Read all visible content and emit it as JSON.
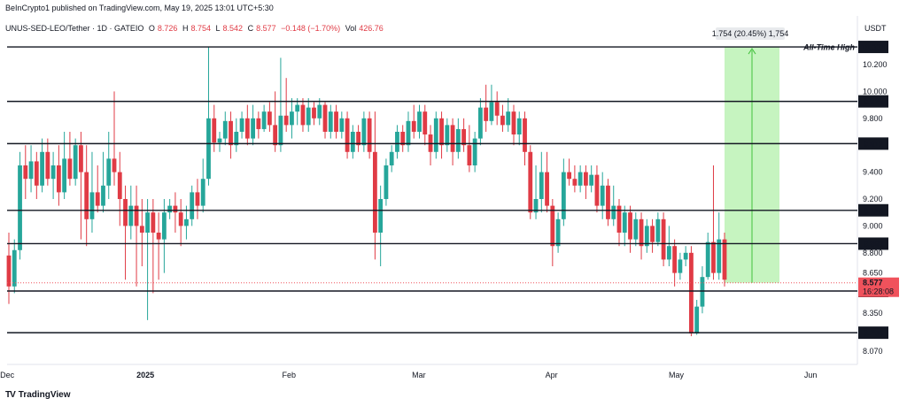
{
  "header": {
    "publisher": "BeInCrypto1 published on TradingView.com, May 19, 2025 13:01 UTC+5:30",
    "symbol": "UNUS-SED-LEO/Tether · 1D · GATEIO",
    "open_label": "O",
    "open": "8.726",
    "high_label": "H",
    "high": "8.754",
    "low_label": "L",
    "low": "8.542",
    "close_label": "C",
    "close": "8.577",
    "change": "−0.148 (−1.70%)",
    "volume_label": "Vol",
    "volume": "426.76",
    "currency": "USDT"
  },
  "footer": {
    "brand": "TradingView",
    "logo_text": "TV"
  },
  "colors": {
    "up": "#26a69a",
    "down": "#e03b45",
    "price_tag": "#f0525c",
    "range_fill": "#b8f1b0",
    "range_line": "#43c23d"
  },
  "chart_data": {
    "type": "candlestick",
    "x_axis_ticks": [
      "Dec",
      "2025",
      "Feb",
      "Mar",
      "Apr",
      "May",
      "Jun"
    ],
    "y_axis_ticks": [
      8.07,
      8.35,
      8.65,
      8.8,
      9.0,
      9.2,
      9.4,
      9.8,
      10.0,
      10.2
    ],
    "ylim": [
      7.97,
      10.43
    ],
    "levels": [
      {
        "value": 10.331,
        "label": "10.331",
        "annotation": "All-Time High"
      },
      {
        "value": 9.926,
        "label": "9.926"
      },
      {
        "value": 9.612,
        "label": "9.612"
      },
      {
        "value": 9.116,
        "label": "9.116"
      },
      {
        "value": 8.868,
        "label": "8.868"
      },
      {
        "value": 8.516,
        "label": "8.516"
      },
      {
        "value": 8.206,
        "label": "8.206"
      }
    ],
    "current_price": {
      "value": 8.577,
      "label": "8.577",
      "countdown": "16:28:08"
    },
    "range_measure": {
      "from": 8.577,
      "to": 10.331,
      "label": "1.754 (20.45%) 1,754"
    },
    "candles": [
      [
        8.78,
        8.55,
        8.95,
        8.42
      ],
      [
        8.55,
        8.82,
        8.9,
        8.5
      ],
      [
        8.82,
        9.45,
        9.55,
        8.75
      ],
      [
        9.45,
        9.35,
        9.6,
        9.2
      ],
      [
        9.35,
        9.48,
        9.6,
        9.25
      ],
      [
        9.48,
        9.3,
        9.55,
        9.2
      ],
      [
        9.3,
        9.55,
        9.65,
        9.25
      ],
      [
        9.55,
        9.35,
        9.65,
        9.3
      ],
      [
        9.35,
        9.45,
        9.55,
        9.2
      ],
      [
        9.45,
        9.25,
        9.6,
        9.15
      ],
      [
        9.25,
        9.5,
        9.7,
        9.2
      ],
      [
        9.5,
        9.35,
        9.7,
        9.3
      ],
      [
        9.35,
        9.6,
        9.65,
        9.3
      ],
      [
        9.6,
        9.4,
        9.7,
        8.9
      ],
      [
        9.4,
        9.05,
        9.6,
        8.85
      ],
      [
        9.05,
        9.25,
        9.55,
        8.95
      ],
      [
        9.25,
        9.15,
        9.45,
        9.1
      ],
      [
        9.15,
        9.3,
        9.55,
        9.1
      ],
      [
        9.3,
        9.5,
        9.7,
        9.2
      ],
      [
        9.5,
        9.4,
        10.0,
        9.3
      ],
      [
        9.4,
        9.2,
        9.55,
        9.0
      ],
      [
        9.2,
        9.0,
        9.3,
        8.6
      ],
      [
        9.0,
        9.15,
        9.3,
        8.9
      ],
      [
        9.15,
        9.0,
        9.3,
        8.55
      ],
      [
        9.0,
        8.95,
        9.2,
        8.7
      ],
      [
        8.95,
        9.1,
        9.2,
        8.3
      ],
      [
        9.1,
        8.95,
        9.2,
        8.5
      ],
      [
        8.95,
        8.9,
        9.1,
        8.6
      ],
      [
        8.9,
        9.1,
        9.2,
        8.65
      ],
      [
        9.1,
        9.15,
        9.2,
        9.05
      ],
      [
        9.15,
        9.1,
        9.25,
        8.95
      ],
      [
        9.1,
        9.0,
        9.2,
        8.85
      ],
      [
        9.0,
        9.05,
        9.15,
        8.9
      ],
      [
        9.05,
        9.25,
        9.3,
        9.0
      ],
      [
        9.25,
        9.15,
        9.35,
        9.05
      ],
      [
        9.15,
        9.35,
        9.5,
        9.1
      ],
      [
        9.35,
        9.8,
        10.33,
        9.3
      ],
      [
        9.8,
        9.62,
        9.9,
        9.55
      ],
      [
        9.62,
        9.65,
        9.7,
        9.55
      ],
      [
        9.65,
        9.78,
        9.85,
        9.6
      ],
      [
        9.78,
        9.6,
        9.85,
        9.5
      ],
      [
        9.6,
        9.7,
        9.8,
        9.55
      ],
      [
        9.7,
        9.8,
        9.85,
        9.65
      ],
      [
        9.8,
        9.65,
        9.9,
        9.6
      ],
      [
        9.65,
        9.8,
        9.9,
        9.6
      ],
      [
        9.8,
        9.72,
        9.85,
        9.65
      ],
      [
        9.72,
        9.85,
        9.9,
        9.7
      ],
      [
        9.85,
        9.75,
        9.92,
        9.7
      ],
      [
        9.75,
        9.6,
        10.0,
        9.55
      ],
      [
        9.6,
        9.82,
        10.25,
        9.55
      ],
      [
        9.82,
        9.75,
        10.1,
        9.7
      ],
      [
        9.75,
        9.85,
        9.95,
        9.65
      ],
      [
        9.85,
        9.9,
        9.95,
        9.75
      ],
      [
        9.9,
        9.75,
        9.95,
        9.7
      ],
      [
        9.75,
        9.88,
        9.95,
        9.7
      ],
      [
        9.88,
        9.8,
        9.92,
        9.75
      ],
      [
        9.8,
        9.9,
        9.95,
        9.75
      ],
      [
        9.9,
        9.7,
        9.92,
        9.65
      ],
      [
        9.7,
        9.85,
        9.9,
        9.65
      ],
      [
        9.85,
        9.7,
        9.9,
        9.65
      ],
      [
        9.7,
        9.8,
        9.85,
        9.65
      ],
      [
        9.8,
        9.55,
        9.85,
        9.5
      ],
      [
        9.55,
        9.7,
        9.75,
        9.5
      ],
      [
        9.7,
        9.6,
        9.75,
        9.55
      ],
      [
        9.6,
        9.8,
        9.85,
        9.55
      ],
      [
        9.8,
        9.55,
        9.85,
        9.5
      ],
      [
        9.55,
        8.95,
        9.85,
        8.75
      ],
      [
        8.95,
        9.2,
        9.3,
        8.7
      ],
      [
        9.2,
        9.45,
        9.5,
        9.15
      ],
      [
        9.45,
        9.55,
        9.6,
        9.4
      ],
      [
        9.55,
        9.7,
        9.75,
        9.5
      ],
      [
        9.7,
        9.6,
        9.75,
        9.55
      ],
      [
        9.6,
        9.78,
        9.85,
        9.55
      ],
      [
        9.78,
        9.7,
        9.9,
        9.65
      ],
      [
        9.7,
        9.85,
        9.9,
        9.65
      ],
      [
        9.85,
        9.68,
        9.9,
        9.6
      ],
      [
        9.68,
        9.55,
        9.75,
        9.45
      ],
      [
        9.55,
        9.8,
        9.85,
        9.5
      ],
      [
        9.8,
        9.6,
        9.85,
        9.5
      ],
      [
        9.6,
        9.75,
        9.8,
        9.55
      ],
      [
        9.75,
        9.55,
        9.8,
        9.45
      ],
      [
        9.55,
        9.72,
        9.8,
        9.5
      ],
      [
        9.72,
        9.6,
        9.8,
        9.55
      ],
      [
        9.6,
        9.45,
        9.75,
        9.4
      ],
      [
        9.45,
        9.65,
        9.7,
        9.4
      ],
      [
        9.65,
        9.88,
        9.95,
        9.6
      ],
      [
        9.88,
        9.78,
        10.05,
        9.7
      ],
      [
        9.78,
        9.92,
        10.05,
        9.75
      ],
      [
        9.92,
        9.82,
        10.0,
        9.75
      ],
      [
        9.82,
        9.75,
        9.9,
        9.7
      ],
      [
        9.75,
        9.85,
        9.95,
        9.7
      ],
      [
        9.85,
        9.68,
        9.9,
        9.6
      ],
      [
        9.68,
        9.8,
        9.85,
        9.6
      ],
      [
        9.8,
        9.55,
        9.85,
        9.45
      ],
      [
        9.55,
        9.1,
        9.6,
        9.05
      ],
      [
        9.1,
        9.2,
        9.45,
        9.05
      ],
      [
        9.2,
        9.4,
        9.55,
        9.1
      ],
      [
        9.4,
        9.15,
        9.55,
        9.1
      ],
      [
        9.15,
        8.85,
        9.2,
        8.7
      ],
      [
        8.85,
        9.05,
        9.1,
        8.8
      ],
      [
        9.05,
        9.4,
        9.5,
        9.0
      ],
      [
        9.4,
        9.35,
        9.5,
        9.3
      ],
      [
        9.35,
        9.3,
        9.45,
        9.25
      ],
      [
        9.3,
        9.4,
        9.45,
        9.25
      ],
      [
        9.4,
        9.3,
        9.45,
        9.2
      ],
      [
        9.3,
        9.38,
        9.45,
        9.25
      ],
      [
        9.38,
        9.15,
        9.45,
        9.1
      ],
      [
        9.15,
        9.3,
        9.4,
        9.05
      ],
      [
        9.3,
        9.05,
        9.35,
        9.0
      ],
      [
        9.05,
        9.15,
        9.3,
        9.0
      ],
      [
        9.15,
        8.95,
        9.2,
        8.85
      ],
      [
        8.95,
        9.1,
        9.15,
        8.85
      ],
      [
        9.1,
        8.9,
        9.15,
        8.8
      ],
      [
        8.9,
        9.05,
        9.1,
        8.85
      ],
      [
        9.05,
        8.85,
        9.1,
        8.75
      ],
      [
        8.85,
        9.0,
        9.05,
        8.8
      ],
      [
        9.0,
        8.88,
        9.05,
        8.8
      ],
      [
        8.88,
        9.05,
        9.1,
        8.85
      ],
      [
        9.05,
        8.75,
        9.1,
        8.7
      ],
      [
        8.75,
        8.85,
        9.0,
        8.7
      ],
      [
        8.85,
        8.65,
        8.9,
        8.55
      ],
      [
        8.65,
        8.75,
        8.8,
        8.6
      ],
      [
        8.75,
        8.8,
        8.85,
        8.7
      ],
      [
        8.8,
        8.2,
        8.85,
        8.18
      ],
      [
        8.2,
        8.4,
        8.45,
        8.19
      ],
      [
        8.4,
        8.62,
        8.7,
        8.35
      ],
      [
        8.62,
        8.88,
        8.95,
        8.6
      ],
      [
        8.88,
        8.65,
        9.45,
        8.6
      ],
      [
        8.65,
        8.9,
        9.1,
        8.6
      ],
      [
        8.9,
        8.6,
        8.95,
        8.55
      ]
    ]
  }
}
